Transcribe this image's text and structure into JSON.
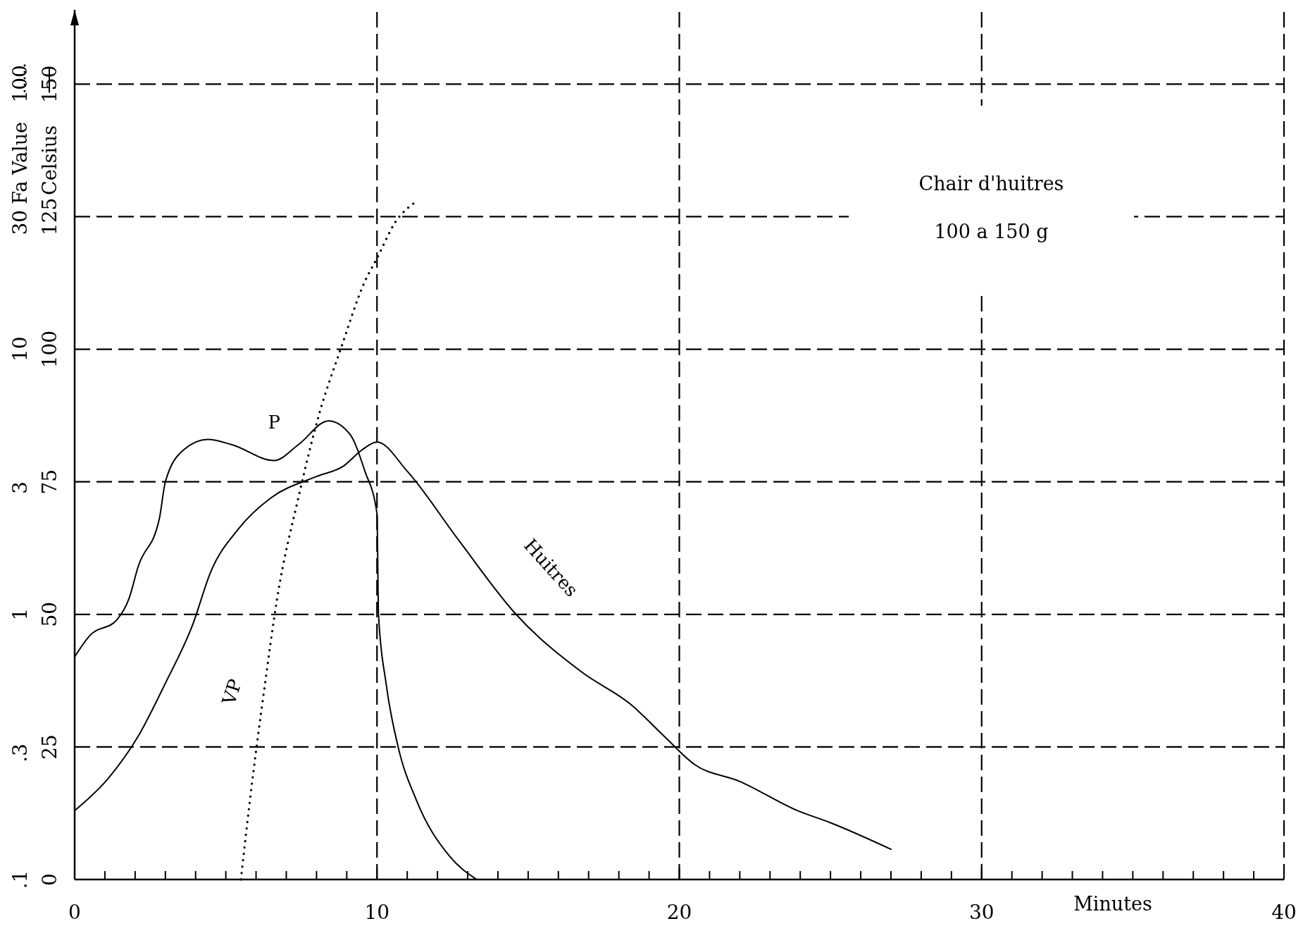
{
  "chart_data": {
    "type": "line",
    "xlabel": "Minutes",
    "ylabel": "Celsius",
    "y2label": "Fa Value",
    "annotations": [
      "Chair d'huitres",
      "100 a 150 g"
    ],
    "xlim": [
      0,
      40
    ],
    "xticks": [
      0,
      {
        "value": 1,
        "label": null
      },
      {
        "value": 2,
        "label": null
      },
      {
        "value": 3,
        "label": null
      },
      {
        "value": 4,
        "label": null
      },
      {
        "value": 5,
        "label": null
      },
      {
        "value": 6,
        "label": null
      },
      {
        "value": 7,
        "label": null
      },
      {
        "value": 8,
        "label": null
      },
      {
        "value": 9,
        "label": null
      },
      10,
      {
        "value": 11,
        "label": null
      },
      {
        "value": 12,
        "label": null
      },
      {
        "value": 13,
        "label": null
      },
      {
        "value": 14,
        "label": null
      },
      {
        "value": 15,
        "label": null
      },
      {
        "value": 16,
        "label": null
      },
      {
        "value": 17,
        "label": null
      },
      {
        "value": 18,
        "label": null
      },
      {
        "value": 19,
        "label": null
      },
      20,
      {
        "value": 21,
        "label": null
      },
      {
        "value": 22,
        "label": null
      },
      {
        "value": 23,
        "label": null
      },
      {
        "value": 24,
        "label": null
      },
      {
        "value": 25,
        "label": null
      },
      {
        "value": 26,
        "label": null
      },
      {
        "value": 27,
        "label": null
      },
      {
        "value": 28,
        "label": null
      },
      {
        "value": 29,
        "label": null
      },
      30,
      {
        "value": 31,
        "label": null
      },
      {
        "value": 32,
        "label": null
      },
      {
        "value": 33,
        "label": null
      },
      {
        "value": 34,
        "label": null
      },
      {
        "value": 35,
        "label": null
      },
      {
        "value": 36,
        "label": null
      },
      {
        "value": 37,
        "label": null
      },
      {
        "value": 38,
        "label": null
      },
      {
        "value": 39,
        "label": null
      },
      40
    ],
    "ylim": [
      0,
      164
    ],
    "yticks": [
      0,
      25,
      50,
      75,
      100,
      125,
      150
    ],
    "y2lim": [
      0.1,
      190
    ],
    "y2ticks": [
      {
        "value": 0.1,
        "label": ".1"
      },
      {
        "value": 0.3,
        "label": ".3"
      },
      1,
      3,
      10,
      30,
      100
    ],
    "log": "y2",
    "grid": true,
    "series": [
      {
        "name": "P",
        "color": "#000000",
        "line_style": "solid",
        "x": [
          0,
          0.5,
          1.4,
          1.8,
          2.1,
          2.8,
          3,
          3.6,
          4.4,
          5.2,
          6.6,
          7.4,
          8.4,
          9.1,
          9.6,
          10,
          10.05,
          10.3,
          10.7,
          11.3,
          12.4,
          13.3
        ],
        "values": [
          42,
          46,
          49,
          53,
          59,
          68,
          75,
          81,
          83,
          82,
          79,
          82,
          86.5,
          84,
          77,
          69,
          50,
          37,
          25,
          15,
          4.4,
          0
        ]
      },
      {
        "name": "Huitres",
        "color": "#000000",
        "line_style": "solid",
        "x": [
          0,
          1.1,
          2.1,
          3,
          3.9,
          4.5,
          5.4,
          6.5,
          8,
          8.9,
          9.5,
          10,
          11,
          12.7,
          14.6,
          16.8,
          18.4,
          19.5,
          20.5,
          22,
          23.9,
          25,
          27
        ],
        "values": [
          13,
          19,
          27,
          37,
          48,
          58,
          66,
          72,
          76,
          78,
          81,
          82.5,
          77,
          64,
          50,
          39,
          33,
          27,
          21.7,
          18.5,
          13,
          10.7,
          5.7
        ]
      },
      {
        "name": "VP",
        "color": "#000000",
        "line_style": "dotted",
        "axis": "y2",
        "x": [
          5.5,
          5.8,
          6.3,
          6.7,
          7.4,
          8.1,
          8.8,
          9.6,
          10,
          10.6,
          11.3
        ],
        "values": [
          0.1,
          0.2,
          0.55,
          1.15,
          2.75,
          5.75,
          10,
          18,
          22,
          30,
          36
        ]
      }
    ]
  }
}
